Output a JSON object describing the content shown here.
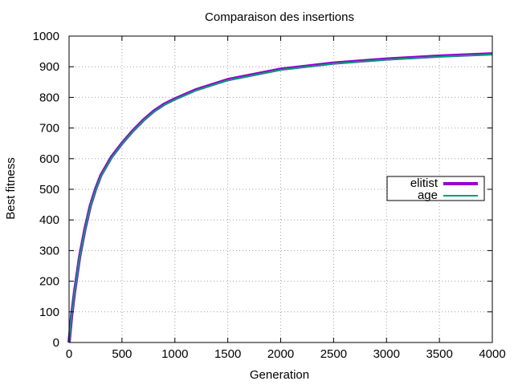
{
  "chart_data": {
    "type": "line",
    "title": "Comparaison des insertions",
    "xlabel": "Generation",
    "ylabel": "Best fitness",
    "xlim": [
      0,
      4000
    ],
    "ylim": [
      0,
      1000
    ],
    "xticks": [
      0,
      500,
      1000,
      1500,
      2000,
      2500,
      3000,
      3500,
      4000
    ],
    "yticks": [
      0,
      100,
      200,
      300,
      400,
      500,
      600,
      700,
      800,
      900,
      1000
    ],
    "grid": true,
    "legend_position": "right",
    "series": [
      {
        "name": "elitist",
        "color": "#9400d3",
        "x": [
          0,
          25,
          50,
          100,
          150,
          200,
          250,
          300,
          400,
          500,
          600,
          700,
          800,
          900,
          1000,
          1200,
          1500,
          2000,
          2500,
          3000,
          3500,
          4000
        ],
        "y": [
          0,
          90,
          160,
          280,
          370,
          445,
          500,
          545,
          605,
          650,
          690,
          725,
          755,
          778,
          795,
          825,
          858,
          892,
          912,
          925,
          935,
          942
        ]
      },
      {
        "name": "age",
        "color": "#009e73",
        "x": [
          0,
          25,
          50,
          100,
          150,
          200,
          250,
          300,
          400,
          500,
          600,
          700,
          800,
          900,
          1000,
          1200,
          1500,
          2000,
          2500,
          3000,
          3500,
          4000
        ],
        "y": [
          0,
          88,
          158,
          277,
          367,
          442,
          497,
          542,
          602,
          648,
          688,
          723,
          753,
          776,
          793,
          823,
          856,
          890,
          910,
          923,
          933,
          940
        ]
      }
    ]
  }
}
